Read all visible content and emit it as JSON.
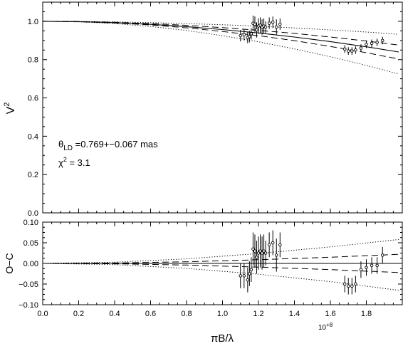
{
  "chart_data": [
    {
      "type": "scatter",
      "panel": "visibility",
      "ylabel_base": "V",
      "ylabel_sup": "2",
      "xlim": [
        0.0,
        2.0
      ],
      "ylim": [
        0.0,
        1.1
      ],
      "yticks": [
        "0.0",
        "0.2",
        "0.4",
        "0.6",
        "0.8",
        "1.0"
      ],
      "annotation": {
        "theta_symbol": "θ",
        "theta_sub": "LD",
        "theta_value": " =0.769+−0.067 mas",
        "chi_symbol": "χ",
        "chi_sup": "2",
        "chi_value": " = 3.1"
      },
      "model_curves": [
        {
          "style": "solid",
          "x": [
            0.0,
            0.2,
            0.4,
            0.6,
            0.8,
            1.0,
            1.2,
            1.4,
            1.6,
            1.8,
            1.98
          ],
          "y": [
            1.0,
            0.998,
            0.993,
            0.984,
            0.972,
            0.957,
            0.939,
            0.918,
            0.894,
            0.867,
            0.84
          ]
        },
        {
          "style": "dashed-upper",
          "x": [
            0.0,
            0.2,
            0.4,
            0.6,
            0.8,
            1.0,
            1.2,
            1.4,
            1.6,
            1.8,
            1.98
          ],
          "y": [
            1.0,
            0.999,
            0.995,
            0.988,
            0.979,
            0.967,
            0.953,
            0.937,
            0.918,
            0.897,
            0.876
          ]
        },
        {
          "style": "dashed-lower",
          "x": [
            0.0,
            0.2,
            0.4,
            0.6,
            0.8,
            1.0,
            1.2,
            1.4,
            1.6,
            1.8,
            1.98
          ],
          "y": [
            1.0,
            0.998,
            0.991,
            0.981,
            0.966,
            0.947,
            0.925,
            0.899,
            0.869,
            0.836,
            0.803
          ]
        },
        {
          "style": "dotted-upper",
          "x": [
            0.0,
            0.2,
            0.4,
            0.6,
            0.8,
            1.0,
            1.2,
            1.4,
            1.6,
            1.8,
            1.98
          ],
          "y": [
            1.0,
            0.999,
            0.997,
            0.993,
            0.988,
            0.982,
            0.975,
            0.965,
            0.955,
            0.944,
            0.932
          ]
        },
        {
          "style": "dotted-lower",
          "x": [
            0.0,
            0.2,
            0.4,
            0.6,
            0.8,
            1.0,
            1.2,
            1.4,
            1.6,
            1.8,
            1.98
          ],
          "y": [
            1.0,
            0.997,
            0.988,
            0.973,
            0.952,
            0.925,
            0.893,
            0.856,
            0.815,
            0.77,
            0.725
          ]
        }
      ],
      "points": {
        "x": [
          1.1,
          1.12,
          1.14,
          1.15,
          1.16,
          1.17,
          1.18,
          1.19,
          1.2,
          1.21,
          1.22,
          1.23,
          1.24,
          1.26,
          1.28,
          1.3,
          1.32,
          1.68,
          1.7,
          1.72,
          1.74,
          1.77,
          1.8,
          1.83,
          1.86,
          1.89
        ],
        "y": [
          0.925,
          0.93,
          0.915,
          0.92,
          0.935,
          0.99,
          0.985,
          0.955,
          0.975,
          0.98,
          0.97,
          0.975,
          0.97,
          0.99,
          0.995,
          0.97,
          0.985,
          0.855,
          0.845,
          0.845,
          0.85,
          0.86,
          0.88,
          0.885,
          0.89,
          0.9
        ],
        "err": [
          0.03,
          0.03,
          0.03,
          0.03,
          0.03,
          0.04,
          0.04,
          0.04,
          0.04,
          0.04,
          0.04,
          0.04,
          0.03,
          0.03,
          0.03,
          0.04,
          0.03,
          0.02,
          0.02,
          0.02,
          0.02,
          0.02,
          0.02,
          0.02,
          0.02,
          0.02
        ]
      }
    },
    {
      "type": "scatter",
      "panel": "residuals",
      "ylabel": "O−C",
      "xlabel": "πB/λ",
      "x_multiplier": "10",
      "x_multiplier_exp": "+8",
      "xlim": [
        0.0,
        2.0
      ],
      "ylim": [
        -0.1,
        0.1
      ],
      "xticks": [
        "0.0",
        "0.2",
        "0.4",
        "0.6",
        "0.8",
        "1.0",
        "1.2",
        "1.4",
        "1.6",
        "1.8"
      ],
      "yticks": [
        "0.10",
        "0.05",
        "0.00",
        "−0.05",
        "−0.10"
      ],
      "model_curves": [
        {
          "style": "solid",
          "x": [
            0.0,
            1.98
          ],
          "y": [
            0.0,
            0.0
          ]
        },
        {
          "style": "dashed-upper",
          "x": [
            0.0,
            0.4,
            0.8,
            1.2,
            1.6,
            1.98
          ],
          "y": [
            0.0,
            0.001,
            0.004,
            0.009,
            0.015,
            0.022
          ]
        },
        {
          "style": "dashed-lower",
          "x": [
            0.0,
            0.4,
            0.8,
            1.2,
            1.6,
            1.98
          ],
          "y": [
            0.0,
            -0.001,
            -0.004,
            -0.009,
            -0.015,
            -0.022
          ]
        },
        {
          "style": "dotted-upper",
          "x": [
            0.0,
            0.4,
            0.8,
            1.2,
            1.6,
            1.98
          ],
          "y": [
            0.0,
            0.003,
            0.011,
            0.024,
            0.04,
            0.058
          ]
        },
        {
          "style": "dotted-lower",
          "x": [
            0.0,
            0.4,
            0.8,
            1.2,
            1.6,
            1.98
          ],
          "y": [
            0.0,
            -0.003,
            -0.012,
            -0.026,
            -0.044,
            -0.065
          ]
        }
      ],
      "points": {
        "x": [
          1.1,
          1.12,
          1.14,
          1.15,
          1.16,
          1.17,
          1.18,
          1.19,
          1.2,
          1.21,
          1.22,
          1.23,
          1.24,
          1.26,
          1.28,
          1.3,
          1.32,
          1.68,
          1.7,
          1.72,
          1.74,
          1.77,
          1.8,
          1.83,
          1.86,
          1.89
        ],
        "y": [
          -0.03,
          -0.03,
          -0.04,
          -0.025,
          -0.015,
          0.035,
          0.03,
          0.015,
          0.025,
          0.03,
          0.025,
          0.03,
          0.025,
          0.045,
          0.05,
          0.02,
          0.045,
          -0.05,
          -0.055,
          -0.055,
          -0.05,
          -0.015,
          -0.01,
          -0.005,
          -0.005,
          0.02
        ],
        "err": [
          0.03,
          0.03,
          0.03,
          0.03,
          0.03,
          0.04,
          0.04,
          0.04,
          0.04,
          0.04,
          0.04,
          0.04,
          0.03,
          0.03,
          0.03,
          0.04,
          0.03,
          0.02,
          0.02,
          0.02,
          0.02,
          0.02,
          0.02,
          0.02,
          0.02,
          0.02
        ]
      }
    }
  ]
}
